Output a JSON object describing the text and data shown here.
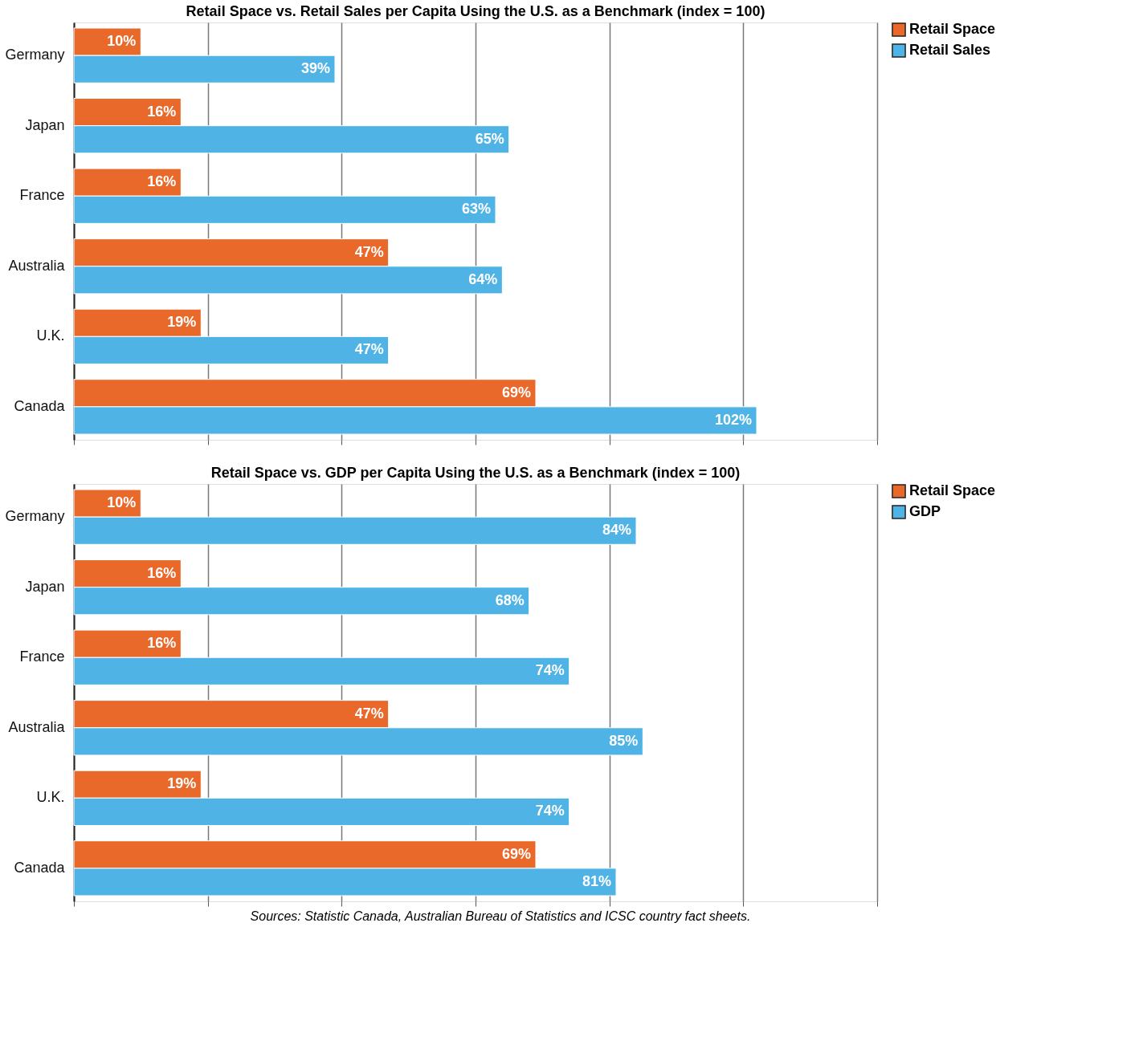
{
  "chart_data": [
    {
      "type": "bar",
      "orientation": "horizontal",
      "title": "Retail Space vs. Retail Sales per Capita Using the U.S. as a Benchmark (index = 100)",
      "categories": [
        "Germany",
        "Japan",
        "France",
        "Australia",
        "U.K.",
        "Canada"
      ],
      "series": [
        {
          "name": "Retail Space",
          "color": "#e8692a",
          "values": [
            10,
            16,
            16,
            47,
            19,
            69
          ],
          "value_labels": [
            "10%",
            "16%",
            "16%",
            "47%",
            "19%",
            "69%"
          ]
        },
        {
          "name": "Retail Sales",
          "color": "#4fb3e6",
          "values": [
            39,
            65,
            63,
            64,
            47,
            102
          ],
          "value_labels": [
            "39%",
            "65%",
            "63%",
            "64%",
            "47%",
            "102%"
          ]
        }
      ],
      "xlim": [
        0,
        120
      ],
      "xticks": [
        {
          "value": 0,
          "label": null
        },
        {
          "value": 20,
          "label": null
        },
        {
          "value": 40,
          "label": null
        },
        {
          "value": 60,
          "label": null
        },
        {
          "value": 80,
          "label": null
        },
        {
          "value": 100,
          "label": null
        },
        {
          "value": 120,
          "label": null
        }
      ],
      "grid": "x",
      "legend": "right",
      "tick_labels": "y"
    },
    {
      "type": "bar",
      "orientation": "horizontal",
      "title": "Retail Space vs. GDP per Capita Using the U.S. as a Benchmark (index = 100)",
      "categories": [
        "Germany",
        "Japan",
        "France",
        "Australia",
        "U.K.",
        "Canada"
      ],
      "series": [
        {
          "name": "Retail Space",
          "color": "#e8692a",
          "values": [
            10,
            16,
            16,
            47,
            19,
            69
          ],
          "value_labels": [
            "10%",
            "16%",
            "16%",
            "47%",
            "19%",
            "69%"
          ]
        },
        {
          "name": "GDP",
          "color": "#4fb3e6",
          "values": [
            84,
            68,
            74,
            85,
            74,
            81
          ],
          "value_labels": [
            "84%",
            "68%",
            "74%",
            "85%",
            "74%",
            "81%"
          ]
        }
      ],
      "xlim": [
        0,
        120
      ],
      "xticks": [
        {
          "value": 0,
          "label": null
        },
        {
          "value": 20,
          "label": null
        },
        {
          "value": 40,
          "label": null
        },
        {
          "value": 60,
          "label": null
        },
        {
          "value": 80,
          "label": null
        },
        {
          "value": 100,
          "label": null
        },
        {
          "value": 120,
          "label": null
        }
      ],
      "grid": "x",
      "legend": "right",
      "tick_labels": "y",
      "annotations": [
        "Sources: Statistic Canada, Australian Bureau of Statistics and ICSC country fact sheets."
      ]
    }
  ]
}
